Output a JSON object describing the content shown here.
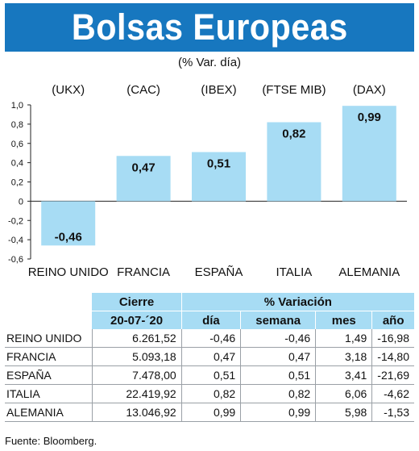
{
  "title": "Bolsas Europeas",
  "subtitle": "(% Var. día)",
  "chart_data": {
    "type": "bar",
    "indices": [
      "(UKX)",
      "(CAC)",
      "(IBEX)",
      "(FTSE MIB)",
      "(DAX)"
    ],
    "categories": [
      "REINO UNIDO",
      "FRANCIA",
      "ESPAÑA",
      "ITALIA",
      "ALEMANIA"
    ],
    "values": [
      -0.46,
      0.47,
      0.51,
      0.82,
      0.99
    ],
    "value_labels": [
      "-0,46",
      "0,47",
      "0,51",
      "0,82",
      "0,99"
    ],
    "yticks": [
      1.0,
      0.8,
      0.6,
      0.4,
      0.2,
      0,
      -0.2,
      -0.4,
      -0.6
    ],
    "ytick_labels": [
      "1,0",
      "0,8",
      "0,6",
      "0,4",
      "0,2",
      "0",
      "-0,2",
      "-0,4",
      "-0,6"
    ],
    "ylim": [
      -0.6,
      1.0
    ],
    "bar_color": "#a7dcf4",
    "grid": false
  },
  "table": {
    "header_cierre": "Cierre",
    "header_date": "20-07-´20",
    "header_variacion": "% Variación",
    "col_dia": "día",
    "col_semana": "semana",
    "col_mes": "mes",
    "col_anio": "año",
    "rows": [
      {
        "country": "REINO UNIDO",
        "cierre": "6.261,52",
        "dia": "-0,46",
        "semana": "-0,46",
        "mes": "1,49",
        "anio": "-16,98"
      },
      {
        "country": "FRANCIA",
        "cierre": "5.093,18",
        "dia": "0,47",
        "semana": "0,47",
        "mes": "3,18",
        "anio": "-14,80"
      },
      {
        "country": "ESPAÑA",
        "cierre": "7.478,00",
        "dia": "0,51",
        "semana": "0,51",
        "mes": "3,41",
        "anio": "-21,69"
      },
      {
        "country": "ITALIA",
        "cierre": "22.419,92",
        "dia": "0,82",
        "semana": "0,82",
        "mes": "6,06",
        "anio": "-4,62"
      },
      {
        "country": "ALEMANIA",
        "cierre": "13.046,92",
        "dia": "0,99",
        "semana": "0,99",
        "mes": "5,98",
        "anio": "-1,53"
      }
    ]
  },
  "source": "Fuente: Bloomberg.",
  "colors": {
    "banner": "#1777bf",
    "accent": "#a7dcf4"
  }
}
